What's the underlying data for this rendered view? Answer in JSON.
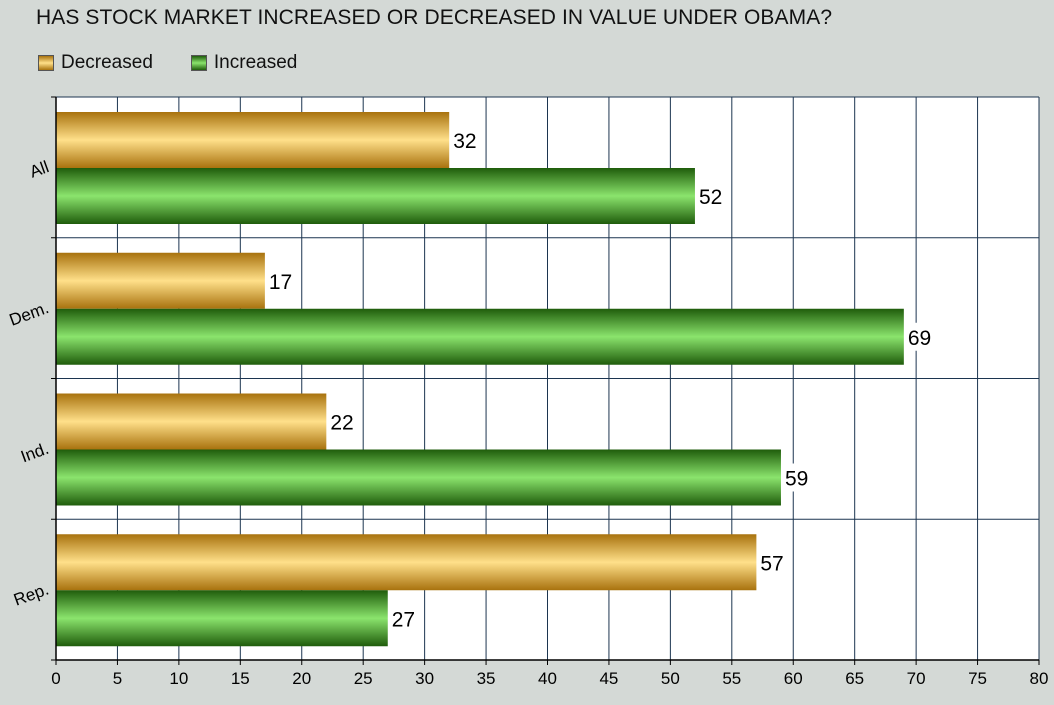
{
  "chart_data": {
    "type": "bar",
    "orientation": "horizontal",
    "title": "HAS STOCK MARKET INCREASED OR DECREASED IN VALUE UNDER OBAMA?",
    "categories": [
      "All",
      "Dem.",
      "Ind.",
      "Rep."
    ],
    "series": [
      {
        "name": "Decreased",
        "values": [
          32,
          17,
          22,
          57
        ],
        "color": "#e8a92a"
      },
      {
        "name": "Increased",
        "values": [
          52,
          69,
          59,
          27
        ],
        "color": "#2f8a14"
      }
    ],
    "xlim": [
      0,
      80
    ],
    "xticks": [
      "0",
      "5",
      "10",
      "15",
      "20",
      "25",
      "30",
      "35",
      "40",
      "45",
      "50",
      "55",
      "60",
      "65",
      "70",
      "75",
      "80"
    ],
    "grid": true,
    "legend": "top-left",
    "data_labels": true
  }
}
